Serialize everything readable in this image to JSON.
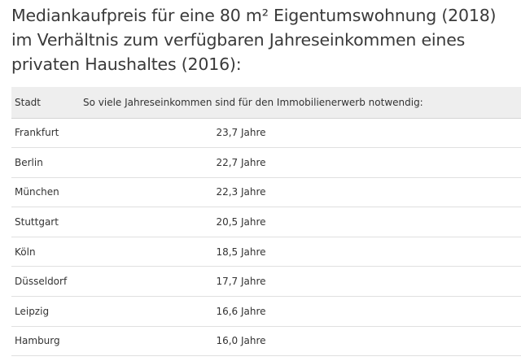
{
  "heading": "Mediankaufpreis für eine 80 m² Eigentumswohnung (2018) im Verhältnis zum verfügbaren Jahreseinkommen eines privaten Haushaltes (2016):",
  "table": {
    "columns": [
      "Stadt",
      "So viele Jahreseinkommen sind für den Immobilienerwerb notwendig:"
    ],
    "rows": [
      [
        "Frankfurt",
        "23,7 Jahre"
      ],
      [
        "Berlin",
        "22,7 Jahre"
      ],
      [
        "München",
        "22,3 Jahre"
      ],
      [
        "Stuttgart",
        "20,5 Jahre"
      ],
      [
        "Köln",
        "18,5 Jahre"
      ],
      [
        "Düsseldorf",
        "17,7 Jahre"
      ],
      [
        "Leipzig",
        "16,6 Jahre"
      ],
      [
        "Hamburg",
        "16,0 Jahre"
      ]
    ]
  },
  "colors": {
    "header_background": "#eeeeee",
    "text": "#333333",
    "row_divider": "#e0e0e0"
  }
}
